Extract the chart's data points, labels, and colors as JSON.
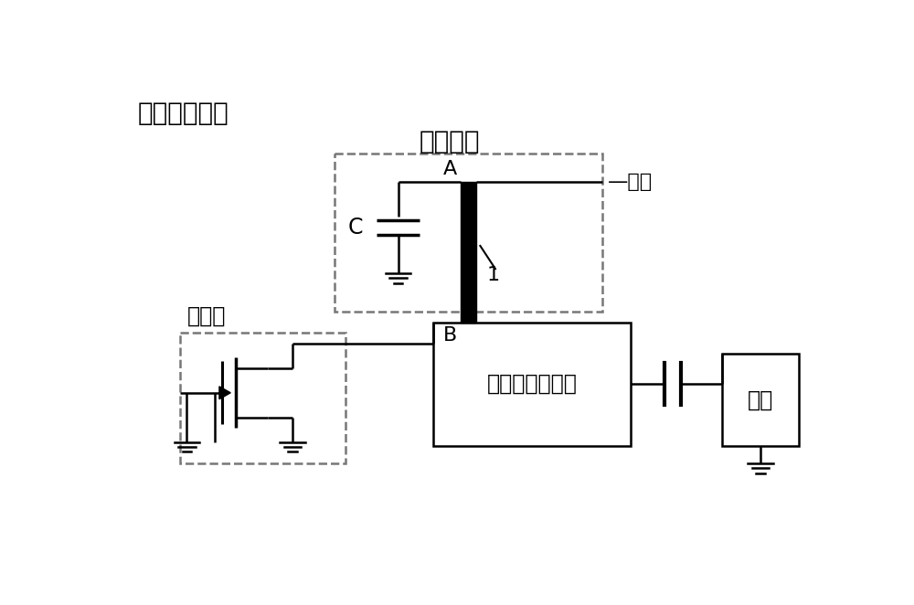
{
  "bg_color": "#ffffff",
  "line_color": "#000000",
  "dashed_color": "#777777",
  "title_main": "功放输出电路",
  "label_feed": "馈电电路",
  "label_power": "—电源",
  "label_cap": "C",
  "label_A": "A",
  "label_B": "B",
  "label_1": "1",
  "label_amp": "功放管",
  "label_match": "功放匹配子电路",
  "label_load": "负载",
  "font_size_main": 20,
  "font_size_label": 17,
  "font_size_small": 14
}
